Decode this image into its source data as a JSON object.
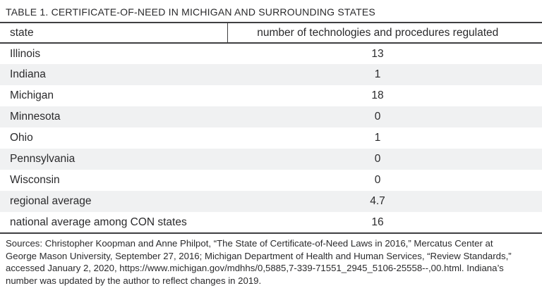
{
  "title": "TABLE 1. CERTIFICATE-OF-NEED IN MICHIGAN AND SURROUNDING STATES",
  "table": {
    "columns": [
      "state",
      "number of technologies and procedures regulated"
    ],
    "rows": [
      {
        "state": "Illinois",
        "value": "13"
      },
      {
        "state": "Indiana",
        "value": "1"
      },
      {
        "state": "Michigan",
        "value": "18"
      },
      {
        "state": "Minnesota",
        "value": "0"
      },
      {
        "state": "Ohio",
        "value": "1"
      },
      {
        "state": "Pennsylvania",
        "value": "0"
      },
      {
        "state": "Wisconsin",
        "value": "0"
      },
      {
        "state": "regional average",
        "value": "4.7"
      },
      {
        "state": "national average among CON states",
        "value": "16"
      }
    ]
  },
  "sources_lines": [
    "Sources: Christopher Koopman and Anne Philpot, “The State of Certificate-of-Need Laws in 2016,” Mercatus Center at",
    "George Mason University, September 27, 2016; Michigan Department of Health and Human Services, “Review Standards,”",
    "accessed January 2, 2020, https://www.michigan.gov/mdhhs/0,5885,7-339-71551_2945_5106-25558--,00.html. Indiana’s",
    "number was updated by the author to reflect changes in 2019."
  ],
  "colors": {
    "text": "#2a2a2c",
    "rule": "#3f3f41",
    "row_alt": "#f0f1f2"
  }
}
